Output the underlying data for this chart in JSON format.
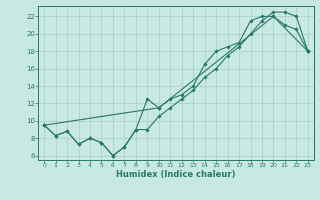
{
  "xlabel": "Humidex (Indice chaleur)",
  "xlim": [
    -0.5,
    23.5
  ],
  "ylim": [
    5.5,
    23.2
  ],
  "xticks": [
    0,
    1,
    2,
    3,
    4,
    5,
    6,
    7,
    8,
    9,
    10,
    11,
    12,
    13,
    14,
    15,
    16,
    17,
    18,
    19,
    20,
    21,
    22,
    23
  ],
  "yticks": [
    6,
    8,
    10,
    12,
    14,
    16,
    18,
    20,
    22
  ],
  "line_color": "#2a7a6a",
  "bg_color": "#c8e8e4",
  "grid_color": "#a8cfc8",
  "line1_x": [
    0,
    1,
    2,
    3,
    4,
    5,
    6,
    7,
    8,
    9,
    10,
    11,
    12,
    13,
    14,
    15,
    16,
    17,
    18,
    19,
    20,
    21,
    22,
    23
  ],
  "line1_y": [
    9.5,
    8.3,
    8.8,
    7.3,
    8.0,
    7.5,
    6.0,
    7.0,
    9.0,
    12.5,
    11.5,
    12.5,
    13.0,
    14.0,
    16.5,
    18.0,
    18.5,
    19.0,
    21.5,
    22.0,
    22.0,
    21.0,
    20.5,
    18.0
  ],
  "line2_x": [
    0,
    1,
    2,
    3,
    4,
    5,
    6,
    7,
    8,
    9,
    10,
    11,
    12,
    13,
    14,
    15,
    16,
    17,
    18,
    19,
    20,
    21,
    22,
    23
  ],
  "line2_y": [
    9.5,
    8.3,
    8.8,
    7.3,
    8.0,
    7.5,
    6.0,
    7.0,
    9.0,
    9.0,
    10.5,
    11.5,
    12.5,
    13.5,
    15.0,
    16.0,
    17.5,
    18.5,
    20.0,
    21.5,
    22.5,
    22.5,
    22.0,
    18.0
  ],
  "line3_x": [
    0,
    10,
    20,
    23
  ],
  "line3_y": [
    9.5,
    11.5,
    22.0,
    18.0
  ]
}
